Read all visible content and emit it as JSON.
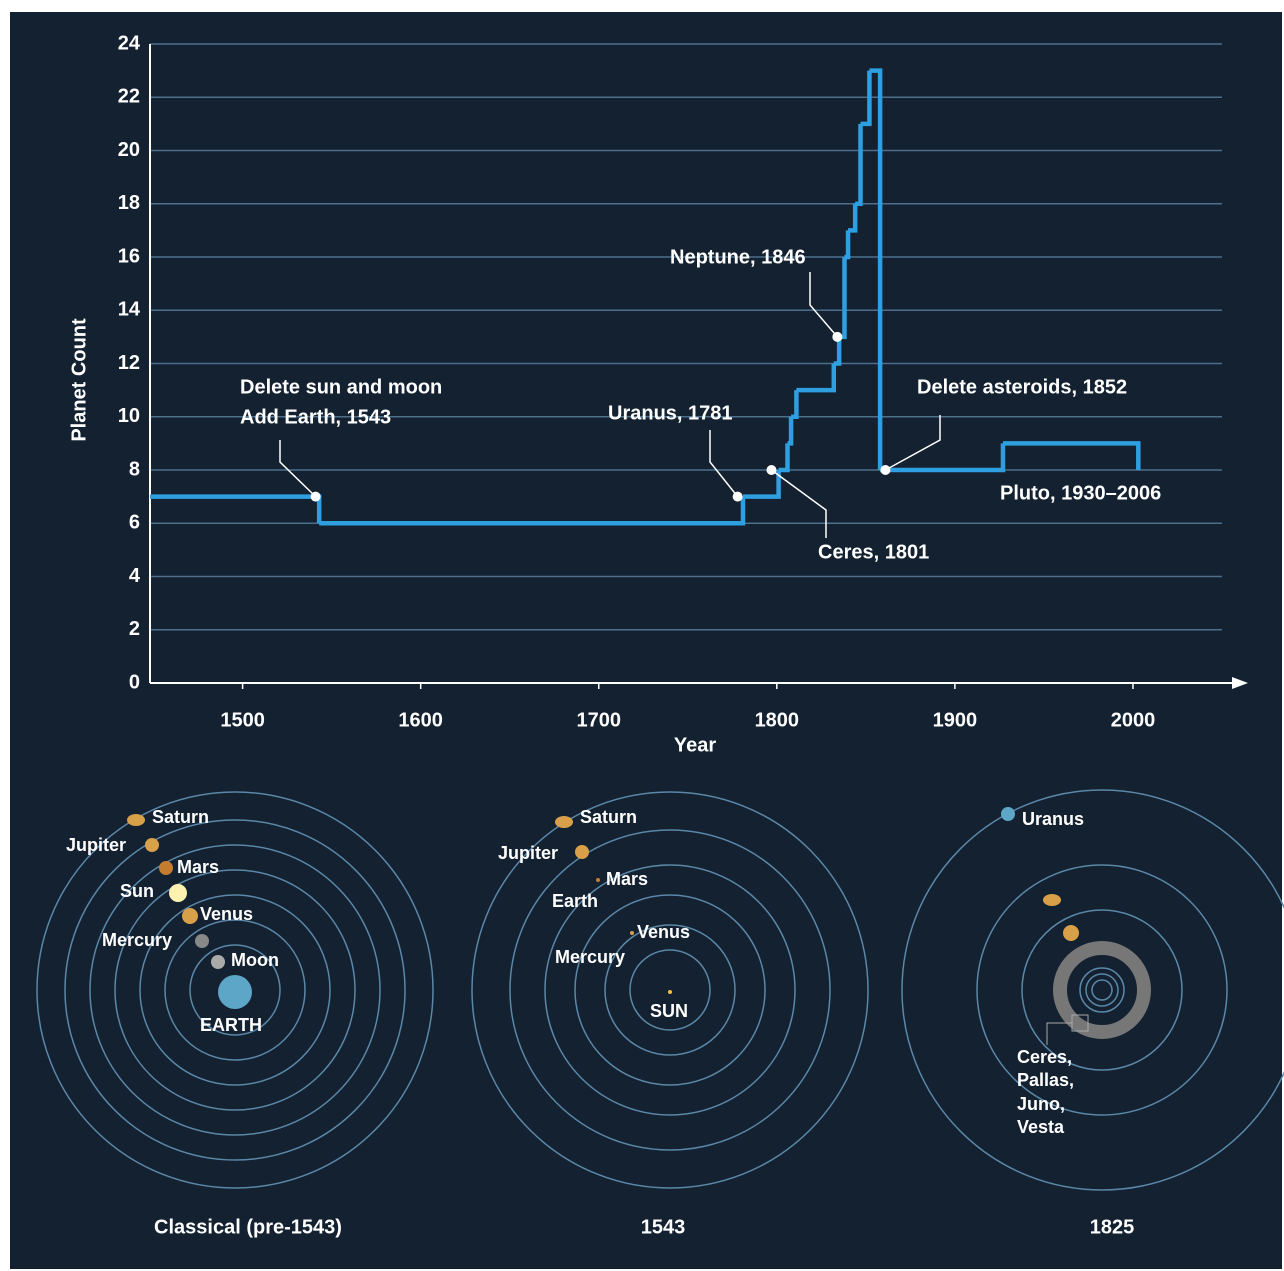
{
  "chart_data": {
    "type": "step-line",
    "x_label": "Year",
    "y_label": "Planet Count",
    "x": [
      1448,
      1543,
      1781,
      1801,
      1806,
      1808,
      1811,
      1832,
      1835,
      1838,
      1840,
      1844,
      1847,
      1852,
      1858,
      1927,
      2003
    ],
    "series": [
      {
        "color": "#2e9fe0",
        "values": [
          7,
          6,
          7,
          8,
          9,
          10,
          11,
          12,
          13,
          16,
          17,
          18,
          21,
          23,
          8,
          9,
          8
        ]
      }
    ],
    "xlim": [
      1448,
      2050
    ],
    "ylim": [
      0,
      24
    ],
    "xticks": [
      1500,
      1600,
      1700,
      1800,
      1900,
      2000
    ],
    "yticks": [
      0,
      2,
      4,
      6,
      8,
      10,
      12,
      14,
      16,
      18,
      20,
      22,
      24
    ],
    "grid": true,
    "grid_color": "#4d6f8c",
    "annotations": [
      {
        "lines": [
          "Delete sun and moon",
          "Add Earth, 1543"
        ],
        "point": [
          1541,
          7
        ]
      },
      {
        "lines": [
          "Uranus, 1781"
        ],
        "point": [
          1778,
          7
        ]
      },
      {
        "lines": [
          "Ceres, 1801"
        ],
        "point": [
          1797,
          8
        ]
      },
      {
        "lines": [
          "Neptune, 1846"
        ],
        "point": [
          1834,
          13
        ]
      },
      {
        "lines": [
          "Delete asteroids, 1852"
        ],
        "point": [
          1861,
          8
        ]
      },
      {
        "lines": [
          "Pluto, 1930–2006"
        ]
      }
    ]
  },
  "diagrams": [
    {
      "title": "Classical (pre-1543)",
      "labels": [
        "Saturn",
        "Jupiter",
        "Mars",
        "Sun",
        "Venus",
        "Mercury",
        "Moon",
        "EARTH"
      ]
    },
    {
      "title": "1543",
      "labels": [
        "Saturn",
        "Jupiter",
        "Mars",
        "Earth",
        "Venus",
        "Mercury",
        "SUN"
      ]
    },
    {
      "title": "1825",
      "labels": [
        "Uranus",
        "Ceres,",
        "Pallas,",
        "Juno,",
        "Vesta"
      ]
    }
  ]
}
